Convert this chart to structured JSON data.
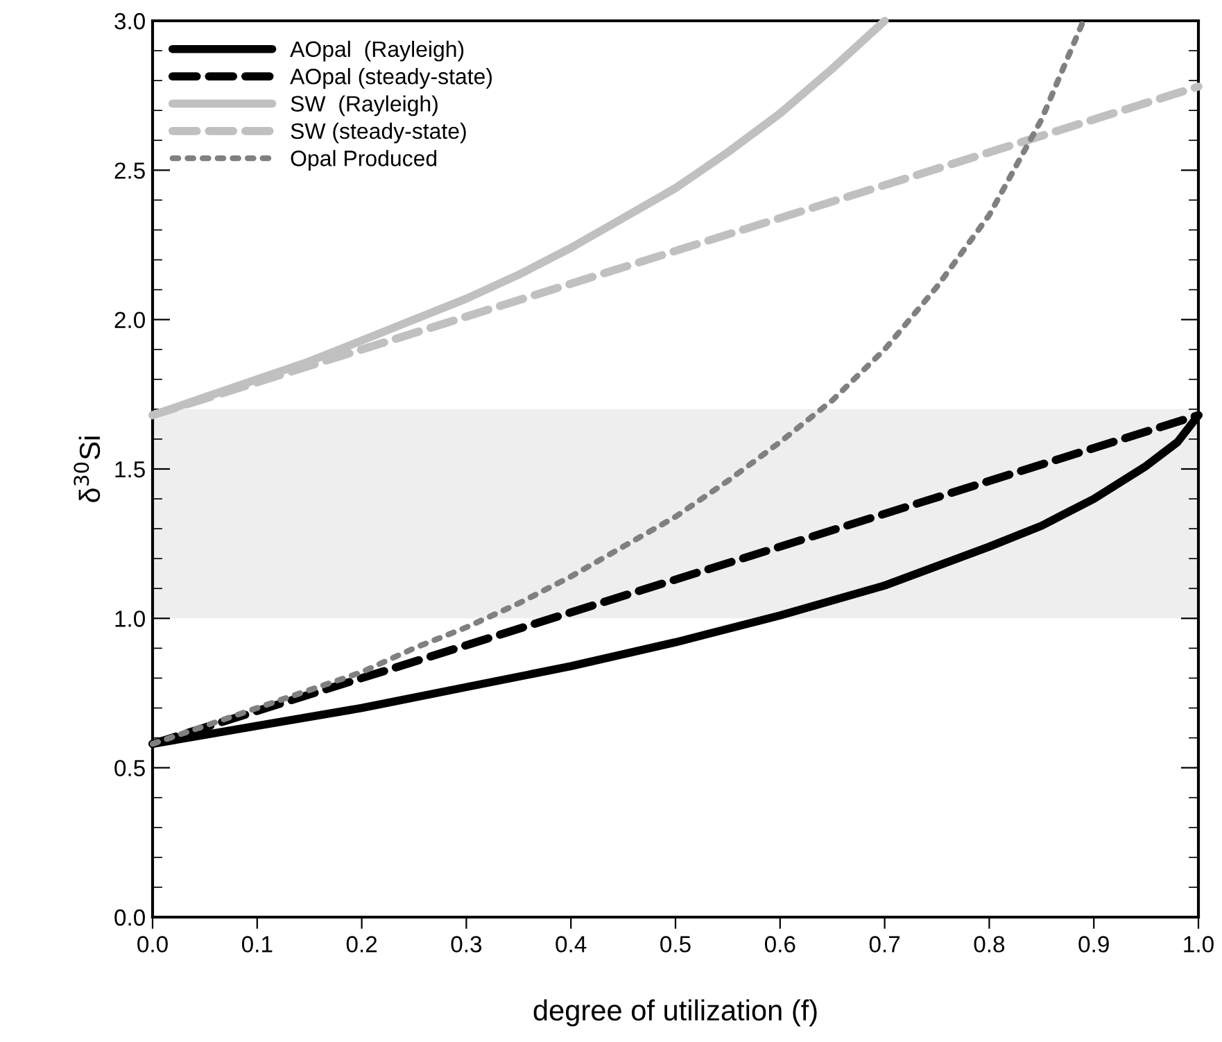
{
  "chart_data": {
    "type": "line",
    "xlabel": "degree of utilization (f)",
    "ylabel": "δ$^{30}$Si",
    "xlim": [
      0,
      1
    ],
    "ylim": [
      0,
      3
    ],
    "xticks": [
      {
        "value": 0,
        "label": "0.0"
      },
      0.1,
      0.2,
      0.3,
      0.4,
      0.5,
      0.6,
      0.7,
      0.8,
      0.9,
      {
        "value": 1,
        "label": "1.0"
      }
    ],
    "yticks": [
      {
        "value": 0,
        "label": "0.0"
      },
      0.5,
      {
        "value": 1,
        "label": "1.0"
      },
      1.5,
      {
        "value": 2,
        "label": "2.0"
      },
      2.5,
      {
        "value": 3,
        "label": "3.0"
      }
    ],
    "grid": false,
    "legend": "top left",
    "marker": "none",
    "bands": [
      {
        "axis": "y",
        "from": 1.0,
        "to": 1.7,
        "color": "#eeeeee"
      }
    ],
    "series": [
      {
        "name": "AOpal  (Rayleigh)",
        "color": "#000000",
        "line_style": "solid",
        "x": [
          0,
          0.05,
          0.1,
          0.2,
          0.3,
          0.4,
          0.5,
          0.6,
          0.7,
          0.8,
          0.85,
          0.9,
          0.95,
          0.98,
          1
        ],
        "values": [
          0.58,
          0.61,
          0.64,
          0.7,
          0.77,
          0.84,
          0.92,
          1.01,
          1.11,
          1.24,
          1.31,
          1.4,
          1.51,
          1.59,
          1.68
        ]
      },
      {
        "name": "AOpal (steady-state)",
        "color": "#000000",
        "line_style": "dashed",
        "x": [
          0,
          1
        ],
        "values": [
          0.58,
          1.68
        ]
      },
      {
        "name": "SW  (Rayleigh)",
        "color": "#c0c0c0",
        "line_style": "solid",
        "x": [
          0,
          0.05,
          0.1,
          0.15,
          0.2,
          0.25,
          0.3,
          0.35,
          0.4,
          0.45,
          0.5,
          0.55,
          0.6,
          0.65,
          0.7
        ],
        "values": [
          1.68,
          1.74,
          1.8,
          1.86,
          1.93,
          2.0,
          2.07,
          2.15,
          2.24,
          2.34,
          2.44,
          2.56,
          2.69,
          2.84,
          3.0
        ]
      },
      {
        "name": "SW (steady-state)",
        "color": "#c0c0c0",
        "line_style": "dashed",
        "x": [
          0,
          1
        ],
        "values": [
          1.68,
          2.78
        ]
      },
      {
        "name": "Opal Produced",
        "color": "#808080",
        "line_style": "dotted",
        "x": [
          0,
          0.05,
          0.1,
          0.15,
          0.2,
          0.25,
          0.3,
          0.35,
          0.4,
          0.45,
          0.5,
          0.55,
          0.6,
          0.65,
          0.7,
          0.75,
          0.8,
          0.85,
          0.89
        ],
        "values": [
          0.58,
          0.64,
          0.7,
          0.76,
          0.82,
          0.9,
          0.97,
          1.05,
          1.14,
          1.24,
          1.34,
          1.46,
          1.59,
          1.73,
          1.9,
          2.11,
          2.35,
          2.67,
          3.0
        ]
      }
    ]
  }
}
